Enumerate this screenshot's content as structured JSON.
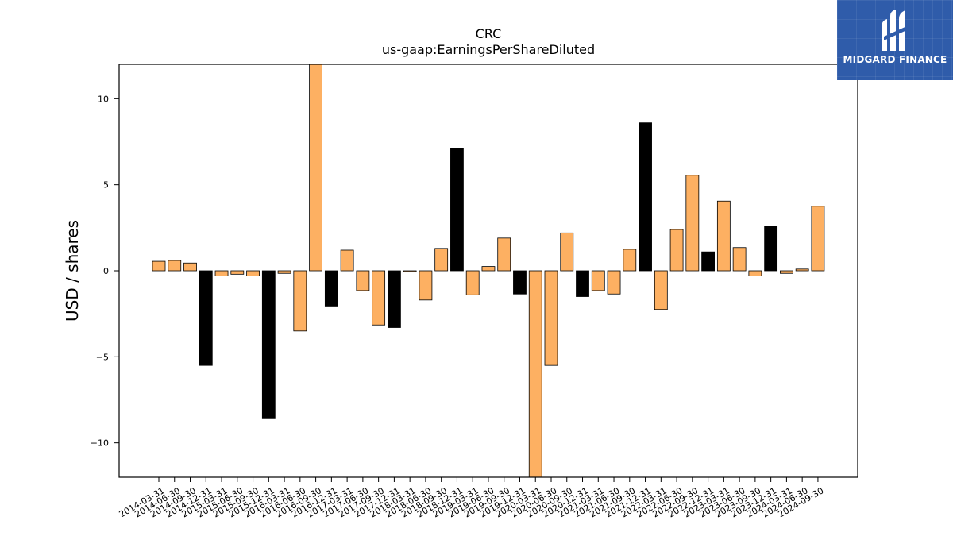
{
  "chart_data": {
    "type": "bar",
    "title": "CRC",
    "subtitle": "us-gaap:EarningsPerShareDiluted",
    "xlabel": "",
    "ylabel": "USD / shares",
    "ylim": [
      -12,
      12
    ],
    "yticks": [
      -10,
      -5,
      0,
      5,
      10
    ],
    "ytick_labels": [
      "−10",
      "−5",
      "0",
      "5",
      "10"
    ],
    "grid": false,
    "categories": [
      "2014-03-31",
      "2014-06-30",
      "2014-09-30",
      "2014-12-31",
      "2015-03-31",
      "2015-06-30",
      "2015-09-30",
      "2015-12-31",
      "2016-03-31",
      "2016-06-30",
      "2016-09-30",
      "2016-12-31",
      "2017-03-31",
      "2017-06-30",
      "2017-09-30",
      "2017-12-31",
      "2018-03-31",
      "2018-06-30",
      "2018-09-30",
      "2018-12-31",
      "2019-03-31",
      "2019-06-30",
      "2019-09-30",
      "2019-12-31",
      "2020-03-31",
      "2020-06-30",
      "2020-09-30",
      "2020-12-31",
      "2021-03-31",
      "2021-06-30",
      "2021-09-30",
      "2021-12-31",
      "2022-03-31",
      "2022-06-30",
      "2022-09-30",
      "2022-12-31",
      "2023-03-31",
      "2023-06-30",
      "2023-09-30",
      "2023-12-31",
      "2024-03-31",
      "2024-06-30",
      "2024-09-30"
    ],
    "values": [
      0.55,
      0.6,
      0.45,
      -5.5,
      -0.3,
      -0.2,
      -0.3,
      -8.6,
      -0.15,
      -3.5,
      12.5,
      -2.05,
      1.2,
      -1.15,
      -3.15,
      -3.3,
      -0.05,
      -1.7,
      1.3,
      7.1,
      -1.4,
      0.25,
      1.9,
      -1.35,
      -12.0,
      -5.5,
      2.2,
      -1.5,
      -1.15,
      -1.35,
      1.25,
      8.6,
      -2.25,
      2.4,
      5.55,
      1.1,
      4.05,
      1.35,
      -0.3,
      2.6,
      -0.15,
      0.1,
      3.75
    ],
    "bar_colors": [
      "orange",
      "orange",
      "orange",
      "black",
      "orange",
      "orange",
      "orange",
      "black",
      "orange",
      "orange",
      "orange",
      "black",
      "orange",
      "orange",
      "orange",
      "black",
      "orange",
      "orange",
      "orange",
      "black",
      "orange",
      "orange",
      "orange",
      "black",
      "orange",
      "orange",
      "orange",
      "black",
      "orange",
      "orange",
      "orange",
      "black",
      "orange",
      "orange",
      "orange",
      "black",
      "orange",
      "orange",
      "orange",
      "black",
      "orange",
      "orange",
      "orange"
    ],
    "colors": {
      "orange": "#fdb062",
      "black": "#000000",
      "edge": "#000000"
    }
  },
  "logo": {
    "text": "MIDGARD FINANCE",
    "bg_color": "#2f5caa"
  }
}
